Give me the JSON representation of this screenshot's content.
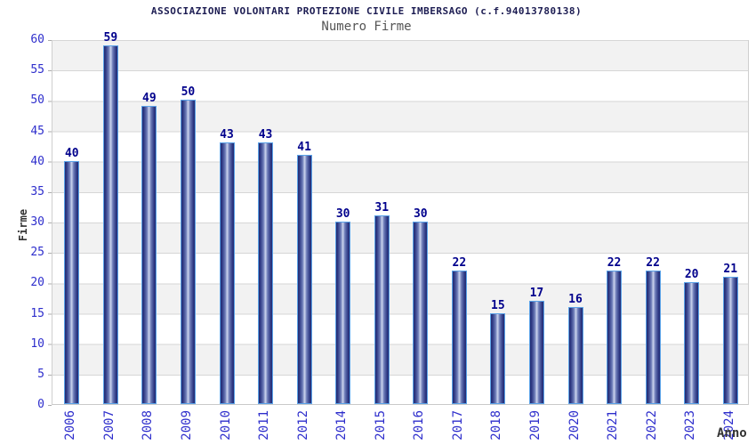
{
  "chart_data": {
    "type": "bar",
    "title": "ASSOCIAZIONE VOLONTARI PROTEZIONE CIVILE IMBERSAGO (c.f.94013780138)",
    "subtitle": "Numero Firme",
    "xlabel": "Anno",
    "ylabel": "Firme",
    "categories": [
      "2006",
      "2007",
      "2008",
      "2009",
      "2010",
      "2011",
      "2012",
      "2014",
      "2015",
      "2016",
      "2017",
      "2018",
      "2019",
      "2020",
      "2021",
      "2022",
      "2023",
      "2024"
    ],
    "values": [
      40,
      59,
      49,
      50,
      43,
      43,
      41,
      30,
      31,
      30,
      22,
      15,
      17,
      16,
      22,
      22,
      20,
      21
    ],
    "ylim": [
      0,
      60
    ],
    "yticks": [
      0,
      5,
      10,
      15,
      20,
      25,
      30,
      35,
      40,
      45,
      50,
      55,
      60
    ],
    "grid": true,
    "legend_position": "none",
    "band_fill_alternating": true,
    "colors": {
      "bar_dark": "#222c72",
      "bar_light": "#cdd5ee",
      "bar_border": "#5aa2e8",
      "value_label": "#00008c",
      "axis_tick_label": "#2e2ecc",
      "title": "#1c1c52",
      "subtitle": "#555555",
      "band_gray": "#f2f2f2",
      "gridline": "#d6d6d6"
    }
  }
}
